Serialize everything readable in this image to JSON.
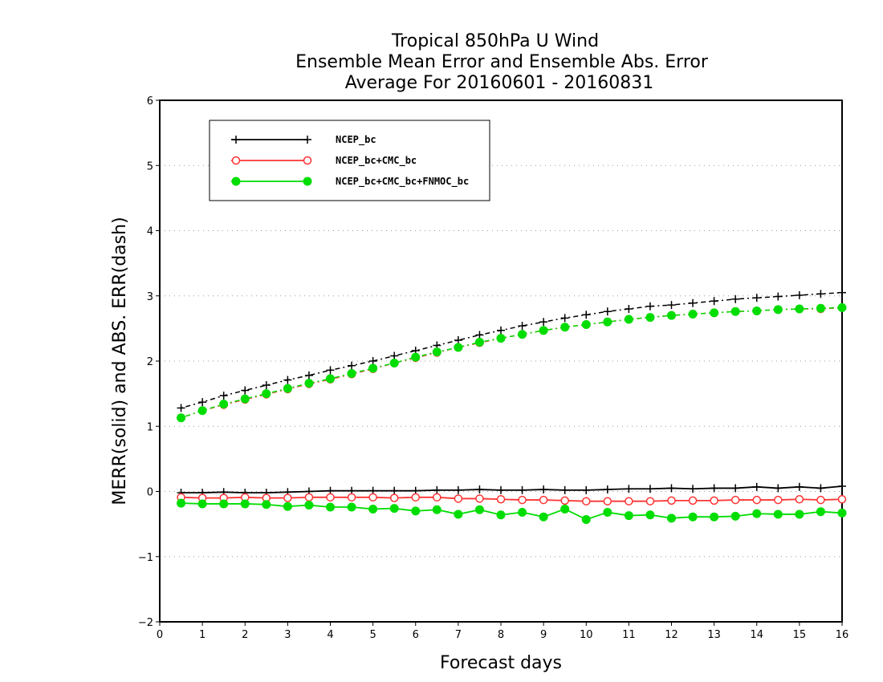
{
  "chart_data": {
    "type": "line",
    "title": [
      "Tropical 850hPa U Wind",
      "Ensemble Mean Error and Ensemble Abs. Error",
      "Average For 20160601 - 20160831"
    ],
    "xlabel": "Forecast days",
    "ylabel": "MERR(solid) and ABS. ERR(dash)",
    "xlim": [
      0,
      16
    ],
    "ylim": [
      -2,
      6
    ],
    "xticks": [
      "0",
      "1",
      "2",
      "3",
      "4",
      "5",
      "6",
      "7",
      "8",
      "9",
      "10",
      "11",
      "12",
      "13",
      "14",
      "15",
      "16"
    ],
    "yticks": [
      "−2",
      "−1",
      "0",
      "1",
      "2",
      "3",
      "4",
      "5",
      "6"
    ],
    "grid": "horizontal dotted",
    "legend_position": "top-left",
    "x": [
      0.5,
      1,
      1.5,
      2,
      2.5,
      3,
      3.5,
      4,
      4.5,
      5,
      5.5,
      6,
      6.5,
      7,
      7.5,
      8,
      8.5,
      9,
      9.5,
      10,
      10.5,
      11,
      11.5,
      12,
      12.5,
      13,
      13.5,
      14,
      14.5,
      15,
      15.5,
      16
    ],
    "series": [
      {
        "name": "NCEP_bc",
        "color": "#000000",
        "marker": "plus",
        "merr": [
          -0.02,
          -0.02,
          -0.01,
          -0.02,
          -0.02,
          -0.01,
          0.0,
          0.01,
          0.01,
          0.01,
          0.01,
          0.01,
          0.02,
          0.02,
          0.03,
          0.02,
          0.02,
          0.03,
          0.02,
          0.02,
          0.03,
          0.04,
          0.04,
          0.05,
          0.04,
          0.05,
          0.05,
          0.07,
          0.05,
          0.07,
          0.05,
          0.08
        ],
        "abs_err": [
          1.28,
          1.37,
          1.47,
          1.55,
          1.63,
          1.71,
          1.78,
          1.86,
          1.93,
          2.0,
          2.08,
          2.16,
          2.24,
          2.32,
          2.4,
          2.47,
          2.54,
          2.6,
          2.66,
          2.71,
          2.76,
          2.8,
          2.84,
          2.86,
          2.89,
          2.92,
          2.95,
          2.97,
          2.99,
          3.01,
          3.03,
          3.05
        ]
      },
      {
        "name": "NCEP_bc+CMC_bc",
        "color": "#ff3333",
        "marker": "open-circle",
        "merr": [
          -0.09,
          -0.1,
          -0.1,
          -0.09,
          -0.1,
          -0.1,
          -0.09,
          -0.09,
          -0.09,
          -0.09,
          -0.1,
          -0.09,
          -0.09,
          -0.11,
          -0.11,
          -0.12,
          -0.13,
          -0.13,
          -0.14,
          -0.15,
          -0.15,
          -0.15,
          -0.15,
          -0.14,
          -0.14,
          -0.14,
          -0.13,
          -0.13,
          -0.13,
          -0.12,
          -0.13,
          -0.12
        ],
        "abs_err": [
          1.13,
          1.24,
          1.33,
          1.41,
          1.49,
          1.57,
          1.65,
          1.72,
          1.8,
          1.88,
          1.97,
          2.05,
          2.13,
          2.21,
          2.28,
          2.35,
          2.41,
          2.47,
          2.52,
          2.56,
          2.6,
          2.64,
          2.67,
          2.7,
          2.72,
          2.74,
          2.76,
          2.77,
          2.79,
          2.8,
          2.8,
          2.82
        ]
      },
      {
        "name": "NCEP_bc+CMC_bc+FNMOC_bc",
        "color": "#00dd00",
        "marker": "filled-circle",
        "merr": [
          -0.18,
          -0.19,
          -0.19,
          -0.19,
          -0.2,
          -0.23,
          -0.21,
          -0.24,
          -0.24,
          -0.27,
          -0.26,
          -0.3,
          -0.28,
          -0.35,
          -0.28,
          -0.36,
          -0.32,
          -0.39,
          -0.27,
          -0.43,
          -0.32,
          -0.37,
          -0.36,
          -0.41,
          -0.39,
          -0.39,
          -0.38,
          -0.34,
          -0.35,
          -0.35,
          -0.31,
          -0.33
        ],
        "abs_err": [
          1.13,
          1.24,
          1.34,
          1.42,
          1.5,
          1.58,
          1.66,
          1.73,
          1.81,
          1.89,
          1.97,
          2.06,
          2.14,
          2.21,
          2.29,
          2.35,
          2.41,
          2.47,
          2.52,
          2.56,
          2.6,
          2.64,
          2.67,
          2.7,
          2.72,
          2.74,
          2.76,
          2.77,
          2.79,
          2.8,
          2.81,
          2.82
        ]
      }
    ]
  }
}
